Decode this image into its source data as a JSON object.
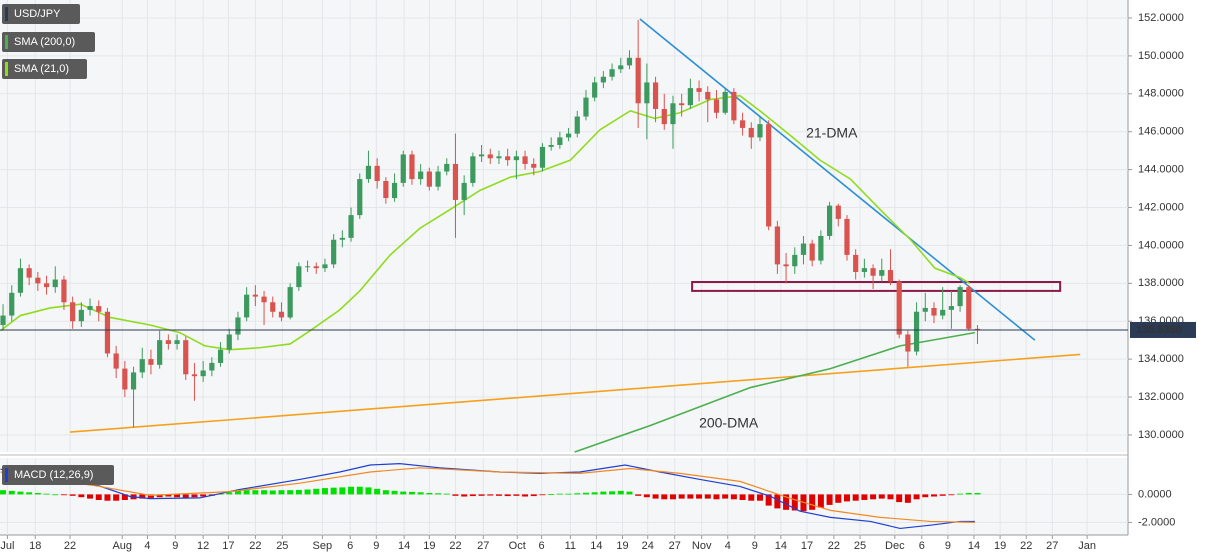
{
  "chart_data": {
    "type": "candlestick",
    "title": "USD/JPY",
    "xlim": [
      -0.35,
      129.3
    ],
    "xticks": [
      {
        "value": 0.5,
        "label": "Jul"
      },
      {
        "value": 3.7,
        "label": "18"
      },
      {
        "value": 7.7,
        "label": "22"
      },
      {
        "value": 13.7,
        "label": "Aug"
      },
      {
        "value": 16.6,
        "label": "4"
      },
      {
        "value": 19.8,
        "label": "9"
      },
      {
        "value": 23,
        "label": "12"
      },
      {
        "value": 25.9,
        "label": "17"
      },
      {
        "value": 29,
        "label": "22"
      },
      {
        "value": 32.1,
        "label": "25"
      },
      {
        "value": 36.7,
        "label": "Sep"
      },
      {
        "value": 39.9,
        "label": "6"
      },
      {
        "value": 42.9,
        "label": "9"
      },
      {
        "value": 46.1,
        "label": "14"
      },
      {
        "value": 49,
        "label": "19"
      },
      {
        "value": 52,
        "label": "22"
      },
      {
        "value": 55.2,
        "label": "27"
      },
      {
        "value": 59.1,
        "label": "Oct"
      },
      {
        "value": 61.9,
        "label": "6"
      },
      {
        "value": 65.2,
        "label": "11"
      },
      {
        "value": 68.2,
        "label": "14"
      },
      {
        "value": 71.2,
        "label": "19"
      },
      {
        "value": 74.1,
        "label": "24"
      },
      {
        "value": 77.2,
        "label": "27"
      },
      {
        "value": 80.3,
        "label": "Nov"
      },
      {
        "value": 83.3,
        "label": "4"
      },
      {
        "value": 86.4,
        "label": "9"
      },
      {
        "value": 89.4,
        "label": "14"
      },
      {
        "value": 92.4,
        "label": "17"
      },
      {
        "value": 95.5,
        "label": "22"
      },
      {
        "value": 98.5,
        "label": "25"
      },
      {
        "value": 102.5,
        "label": "Dec"
      },
      {
        "value": 105.6,
        "label": "6"
      },
      {
        "value": 108.6,
        "label": "9"
      },
      {
        "value": 111.6,
        "label": "14"
      },
      {
        "value": 114.6,
        "label": "19"
      },
      {
        "value": 117.6,
        "label": "22"
      },
      {
        "value": 120.6,
        "label": "27"
      },
      {
        "value": 124.6,
        "label": "Jan"
      }
    ],
    "ylim": [
      129.1,
      152.95
    ],
    "yticks": [
      {
        "value": 130,
        "label": "130.0000"
      },
      {
        "value": 132,
        "label": "132.0000"
      },
      {
        "value": 134,
        "label": "134.0000"
      },
      {
        "value": 136,
        "label": "136.0000"
      },
      {
        "value": 138,
        "label": "138.0000"
      },
      {
        "value": 140,
        "label": "140.0000"
      },
      {
        "value": 142,
        "label": "142.0000"
      },
      {
        "value": 144,
        "label": "144.0000"
      },
      {
        "value": 146,
        "label": "146.0000"
      },
      {
        "value": 148,
        "label": "148.0000"
      },
      {
        "value": 150,
        "label": "150.0000"
      },
      {
        "value": 152,
        "label": "152.0000"
      }
    ],
    "grid": true,
    "up_color": "#3c9a5f",
    "down_color": "#d9534f",
    "candles": {
      "open": [
        135.8,
        136.3,
        137.5,
        138.8,
        138.3,
        138.0,
        137.8,
        138.2,
        137.0,
        136.0,
        136.6,
        136.8,
        136.5,
        134.3,
        133.5,
        132.4,
        133.3,
        134.0,
        133.7,
        135.0,
        134.8,
        135.0,
        133.2,
        133.1,
        133.4,
        133.8,
        134.5,
        135.3,
        136.2,
        137.4,
        137.3,
        137.0,
        136.5,
        136.2,
        137.8,
        138.9,
        138.9,
        138.8,
        139.0,
        140.3,
        140.4,
        141.6,
        143.5,
        144.2,
        143.4,
        142.5,
        143.3,
        144.8,
        143.5,
        143.9,
        143.1,
        143.9,
        144.3,
        142.4,
        143.3,
        144.7,
        144.8,
        144.6,
        144.7,
        144.5,
        144.7,
        144.3,
        144.1,
        145.2,
        145.3,
        145.7,
        145.9,
        146.8,
        147.8,
        148.6,
        148.9,
        149.3,
        149.5,
        149.9,
        147.5,
        148.6,
        147.2,
        146.4,
        147.5,
        147.4,
        148.3,
        148.1,
        147.7,
        147.0,
        148.1,
        146.6,
        146.2,
        145.7,
        146.4,
        141.0,
        139.0,
        138.9,
        139.5,
        140.1,
        139.2,
        140.5,
        142.1,
        141.4,
        139.5,
        138.6,
        138.8,
        138.4,
        138.7,
        138.1,
        135.3,
        134.4,
        136.5,
        136.7,
        136.3,
        136.6,
        136.8,
        137.8,
        135.6
      ],
      "high": [
        136.9,
        137.9,
        139.3,
        139.0,
        138.6,
        138.4,
        138.9,
        138.4,
        137.3,
        137.0,
        137.2,
        137.1,
        136.7,
        134.7,
        133.9,
        133.6,
        134.6,
        134.5,
        135.5,
        135.3,
        135.3,
        135.2,
        133.8,
        133.9,
        134.1,
        134.9,
        135.6,
        136.5,
        137.8,
        137.9,
        137.6,
        137.3,
        137.0,
        138.0,
        139.1,
        139.2,
        139.1,
        139.3,
        140.6,
        140.8,
        142.0,
        143.8,
        145.0,
        144.6,
        143.6,
        143.8,
        145.0,
        145.0,
        144.3,
        144.1,
        144.2,
        144.6,
        145.9,
        143.7,
        144.9,
        145.3,
        145.1,
        145.0,
        145.1,
        145.0,
        145.0,
        144.6,
        145.4,
        145.7,
        146.0,
        146.2,
        147.1,
        148.2,
        148.9,
        149.2,
        149.6,
        149.9,
        150.3,
        151.9,
        149.6,
        148.9,
        148.0,
        147.9,
        148.0,
        148.8,
        148.7,
        148.4,
        148.2,
        148.3,
        148.3,
        147.0,
        146.5,
        146.8,
        146.6,
        141.3,
        139.6,
        139.9,
        140.5,
        140.3,
        140.8,
        142.3,
        142.2,
        141.6,
        139.8,
        139.3,
        139.0,
        139.3,
        139.8,
        138.2,
        135.5,
        137.0,
        137.5,
        137.0,
        137.8,
        137.6,
        137.9,
        137.9,
        135.8
      ],
      "low": [
        135.5,
        136.0,
        137.3,
        137.9,
        137.6,
        137.4,
        137.5,
        136.6,
        135.6,
        135.7,
        136.3,
        136.0,
        134.1,
        133.0,
        132.0,
        130.4,
        133.0,
        133.2,
        133.5,
        134.5,
        134.5,
        132.9,
        131.8,
        132.8,
        133.1,
        133.6,
        134.3,
        135.0,
        136.0,
        136.8,
        135.8,
        136.2,
        136.0,
        136.1,
        137.6,
        138.6,
        138.5,
        138.6,
        138.8,
        139.9,
        140.2,
        141.4,
        143.3,
        143.0,
        142.2,
        142.3,
        143.1,
        143.2,
        143.2,
        142.9,
        142.9,
        143.7,
        140.4,
        141.6,
        143.1,
        144.4,
        144.3,
        144.3,
        144.2,
        143.5,
        144.0,
        143.7,
        143.9,
        145.0,
        145.1,
        145.5,
        145.7,
        146.6,
        147.6,
        148.3,
        148.7,
        149.1,
        149.3,
        146.2,
        145.6,
        146.5,
        146.1,
        145.1,
        146.8,
        147.2,
        147.6,
        146.5,
        146.7,
        146.9,
        146.4,
        145.8,
        145.1,
        145.5,
        140.8,
        138.5,
        138.0,
        138.5,
        139.0,
        138.9,
        139.0,
        140.3,
        141.0,
        139.2,
        138.2,
        138.3,
        137.7,
        138.1,
        137.9,
        135.1,
        133.6,
        134.2,
        136.0,
        135.9,
        136.1,
        135.6,
        136.5,
        135.5,
        134.8
      ],
      "close": [
        136.3,
        137.5,
        138.8,
        138.3,
        138.0,
        137.8,
        138.2,
        137.0,
        136.0,
        136.6,
        136.8,
        136.5,
        134.3,
        133.5,
        132.4,
        133.3,
        134.0,
        133.7,
        135.0,
        134.8,
        135.0,
        133.2,
        133.1,
        133.4,
        133.8,
        134.5,
        135.3,
        136.2,
        137.4,
        137.3,
        137.0,
        136.5,
        136.2,
        137.8,
        138.9,
        138.9,
        138.8,
        139.0,
        140.3,
        140.4,
        141.6,
        143.5,
        144.2,
        143.4,
        142.5,
        143.3,
        144.8,
        143.5,
        143.9,
        143.1,
        143.9,
        144.3,
        142.4,
        143.3,
        144.7,
        144.8,
        144.6,
        144.7,
        144.5,
        144.7,
        144.3,
        144.1,
        145.2,
        145.3,
        145.7,
        145.9,
        146.8,
        147.8,
        148.6,
        148.9,
        149.3,
        149.5,
        149.9,
        147.5,
        148.6,
        147.2,
        146.4,
        147.5,
        147.4,
        148.3,
        148.1,
        147.7,
        147.0,
        148.1,
        146.6,
        146.2,
        145.7,
        146.4,
        141.0,
        139.0,
        138.9,
        139.5,
        140.1,
        139.2,
        140.5,
        142.1,
        141.4,
        139.5,
        138.6,
        138.8,
        138.4,
        138.7,
        138.1,
        135.3,
        134.4,
        136.5,
        136.7,
        136.3,
        136.6,
        136.8,
        137.8,
        135.6,
        135.54
      ]
    },
    "last_price": {
      "value": 135.539,
      "label": "135.5390"
    },
    "series": [
      {
        "name": "SMA (200,0)",
        "color": "#4caf50",
        "x": [
          65.7,
          74.4,
          85.9,
          95.1,
          103.1,
          111.7
        ],
        "values": [
          129.1,
          130.5,
          132.5,
          133.5,
          134.7,
          135.4
        ]
      },
      {
        "name": "SMA (21,0)",
        "color": "#8fdc1e",
        "x": [
          -0.3,
          2.0,
          5.4,
          8.9,
          12.3,
          16.9,
          20.3,
          23.2,
          26.1,
          29.5,
          33.0,
          35.3,
          38.7,
          41.0,
          44.5,
          47.9,
          51.4,
          54.8,
          58.3,
          61.7,
          65.2,
          68.6,
          72.1,
          74.9,
          77.8,
          81.3,
          84.7,
          87.0,
          90.5,
          93.9,
          97.4,
          100.8,
          104.3,
          107.1,
          110.0,
          111.1
        ],
        "values": [
          135.5,
          136.3,
          136.7,
          136.9,
          136.2,
          135.8,
          135.4,
          134.7,
          134.5,
          134.6,
          134.8,
          135.5,
          136.6,
          137.6,
          139.5,
          140.9,
          141.9,
          142.9,
          143.6,
          143.9,
          144.5,
          146.1,
          147.1,
          146.7,
          147.0,
          147.7,
          147.9,
          147.1,
          145.8,
          144.5,
          143.5,
          141.9,
          140.3,
          138.8,
          138.3,
          138.0
        ]
      }
    ],
    "trendlines": [
      {
        "color": "#2a8fd6",
        "x": [
          73.2,
          118.6
        ],
        "values": [
          151.95,
          135.0
        ]
      },
      {
        "color": "#f5a11c",
        "x": [
          7.7,
          123.8
        ],
        "values": [
          130.15,
          134.25
        ]
      }
    ],
    "zone": {
      "color": "#8b1a4a",
      "x": [
        79.2,
        121.5
      ],
      "values": [
        138.07,
        137.6
      ]
    },
    "annotations": [
      {
        "text": "21-DMA",
        "color": "#7ccf00",
        "x": 92.3,
        "value": 145.9
      },
      {
        "text": "200-DMA",
        "color": "#4caf50",
        "x": 80.0,
        "value": 130.6
      }
    ],
    "macd": {
      "name": "MACD (12,26,9)",
      "ylim": [
        -2.9,
        2.6
      ],
      "yticks": [
        {
          "value": 0,
          "label": "0.0000"
        },
        {
          "value": -2,
          "label": "-2.0000"
        }
      ],
      "up_color": "#00e000",
      "down_color": "#e00000",
      "histogram": [
        0.3,
        0.25,
        0.2,
        0.15,
        0.1,
        0.05,
        0,
        -0.05,
        -0.1,
        -0.2,
        -0.3,
        -0.4,
        -0.45,
        -0.45,
        -0.4,
        -0.35,
        -0.3,
        -0.25,
        -0.2,
        -0.15,
        -0.2,
        -0.25,
        -0.2,
        -0.15,
        -0.1,
        0.05,
        0.15,
        0.25,
        0.3,
        0.3,
        0.3,
        0.28,
        0.3,
        0.3,
        0.32,
        0.35,
        0.4,
        0.45,
        0.48,
        0.5,
        0.55,
        0.55,
        0.5,
        0.4,
        0.3,
        0.25,
        0.2,
        0.18,
        0.15,
        0.1,
        0.08,
        0.05,
        -0.1,
        -0.15,
        -0.12,
        -0.1,
        -0.08,
        -0.1,
        -0.12,
        -0.1,
        -0.15,
        -0.12,
        -0.05,
        0.02,
        0.05,
        0.05,
        0.08,
        0.12,
        0.15,
        0.2,
        0.22,
        0.25,
        0.2,
        -0.1,
        -0.2,
        -0.3,
        -0.35,
        -0.35,
        -0.3,
        -0.3,
        -0.3,
        -0.3,
        -0.35,
        -0.3,
        -0.35,
        -0.4,
        -0.45,
        -0.45,
        -0.8,
        -1.0,
        -1.1,
        -1.15,
        -1.2,
        -1.1,
        -0.95,
        -0.75,
        -0.6,
        -0.5,
        -0.45,
        -0.4,
        -0.35,
        -0.3,
        -0.35,
        -0.55,
        -0.6,
        -0.35,
        -0.2,
        -0.15,
        -0.1,
        -0.05,
        0.05,
        0.1,
        0.1
      ],
      "macd_line": {
        "color": "#1f3fd4",
        "x": [
          -0.3,
          11.1,
          14.6,
          16.9,
          22.6,
          27.2,
          34.1,
          38.7,
          42.2,
          45.6,
          50.2,
          57.1,
          61.7,
          66.3,
          71.5,
          75.5,
          80.1,
          84.7,
          88.2,
          91.6,
          95.1,
          99.7,
          103.1,
          106.6,
          110.0,
          111.7
        ],
        "values": [
          1.8,
          0.6,
          -0.15,
          -0.3,
          -0.25,
          0.35,
          1.07,
          1.6,
          2.1,
          2.2,
          1.9,
          1.6,
          1.5,
          1.6,
          2.1,
          1.6,
          1.07,
          0.57,
          -0.14,
          -1.2,
          -1.64,
          -1.93,
          -2.43,
          -2.2,
          -1.93,
          -1.93
        ]
      },
      "signal_line": {
        "color": "#f08a24",
        "x": [
          -0.3,
          11.1,
          16.9,
          26.1,
          34.1,
          42.2,
          47.9,
          57.1,
          66.3,
          72.1,
          77.8,
          84.7,
          90.5,
          95.1,
          100.8,
          106.6,
          111.7
        ],
        "values": [
          1.6,
          0.57,
          -0.07,
          0.2,
          0.8,
          1.6,
          1.9,
          1.6,
          1.5,
          1.85,
          1.5,
          0.93,
          -0.29,
          -1.14,
          -1.64,
          -1.93,
          -2.0
        ]
      }
    }
  }
}
